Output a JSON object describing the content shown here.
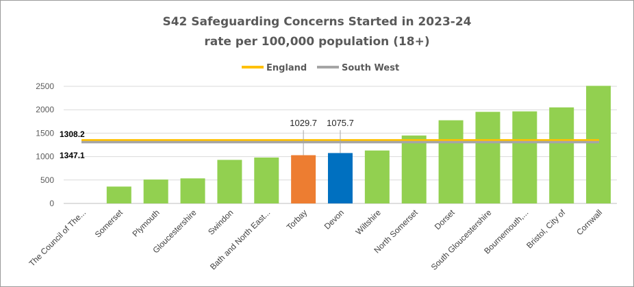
{
  "chart_data": {
    "type": "bar",
    "title": "S42 Safeguarding Concerns Started in 2023-24",
    "subtitle": "rate per 100,000 population (18+)",
    "categories": [
      "The Council of The...",
      "Somerset",
      "Plymouth",
      "Gloucestershire",
      "Swindon",
      "Bath and North East...",
      "Torbay",
      "Devon",
      "Wiltshire",
      "North Somerset",
      "Dorset",
      "South Gloucestershire",
      "Bournemouth,...",
      "Bristol, City of",
      "Cornwall"
    ],
    "values": [
      0,
      360,
      510,
      535,
      930,
      980,
      1029.7,
      1075.7,
      1130,
      1450,
      1775,
      1955,
      1965,
      2050,
      2510
    ],
    "bar_colors": [
      "#92d050",
      "#92d050",
      "#92d050",
      "#92d050",
      "#92d050",
      "#92d050",
      "#ed7d31",
      "#0070c0",
      "#92d050",
      "#92d050",
      "#92d050",
      "#92d050",
      "#92d050",
      "#92d050",
      "#92d050"
    ],
    "data_labels": [
      {
        "category": "Torbay",
        "text": "1029.7"
      },
      {
        "category": "Devon",
        "text": "1075.7"
      }
    ],
    "reference_lines": [
      {
        "name": "England",
        "value": 1347.1,
        "color": "#ffc000",
        "label": "1347.1"
      },
      {
        "name": "South West",
        "value": 1308.2,
        "color": "#a5a5a5",
        "label": "1308.2"
      }
    ],
    "y_ticks": [
      "0",
      "500",
      "1000",
      "1500",
      "2000",
      "2500"
    ],
    "ylim": [
      0,
      2500
    ],
    "grid": true,
    "legend_position": "top"
  }
}
